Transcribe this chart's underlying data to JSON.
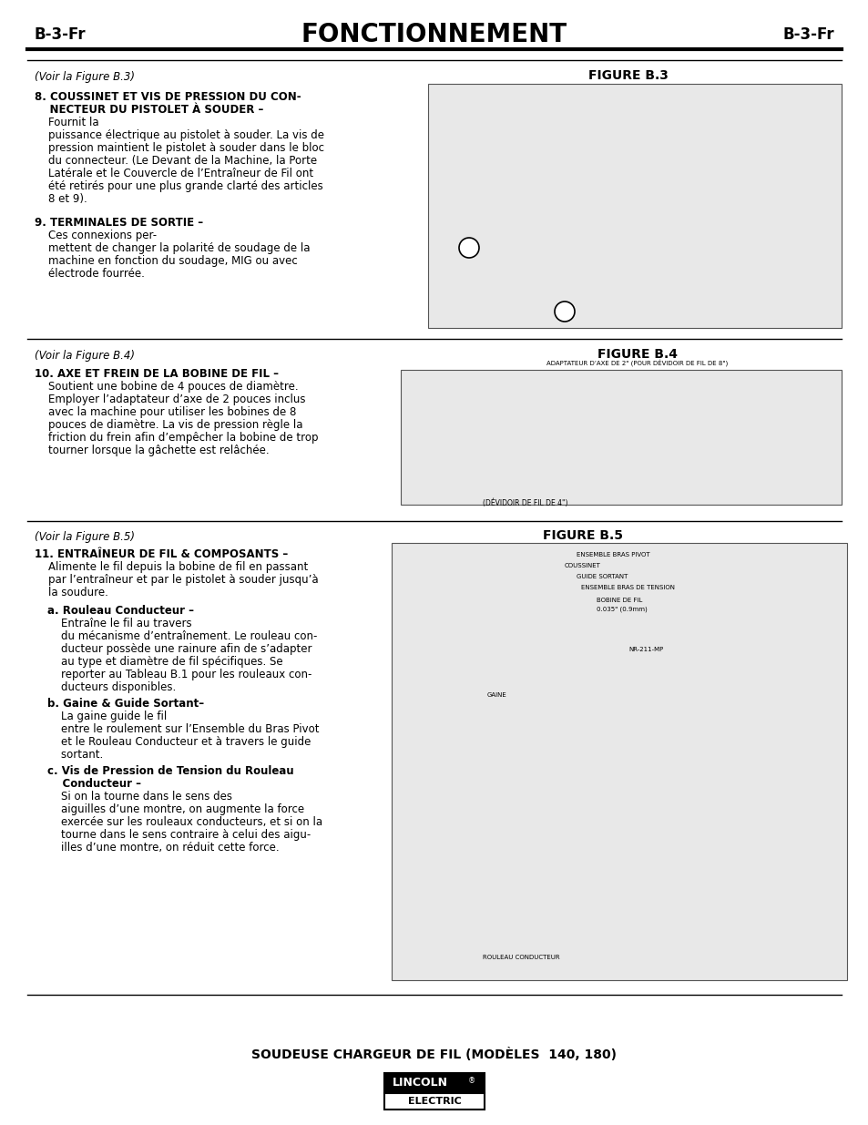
{
  "page_width": 9.54,
  "page_height": 12.35,
  "background_color": "#ffffff",
  "header_title": "FONCTIONNEMENT",
  "header_left": "B-3-Fr",
  "header_right": "B-3-Fr",
  "footer_text": "SOUDEUSE CHARGEUR DE FIL (MODÈLES  140, 180)",
  "section1_voir": "(Voir la Figure B.3)",
  "section1_fig_title": "FIGURE B.3",
  "section2_voir": "(Voir la Figure B.4)",
  "section2_fig_title": "FIGURE B.4",
  "section3_voir": "(Voir la Figure B.5)",
  "section3_fig_title": "FIGURE B.5",
  "fig4_cap1": "ADAPTATEUR D’AXE DE 2\" (POUR DÉVIDOIR DE FIL DE 8\")",
  "fig4_cap2": "(ÉVIDOIR DE FIL DE 4\")"
}
